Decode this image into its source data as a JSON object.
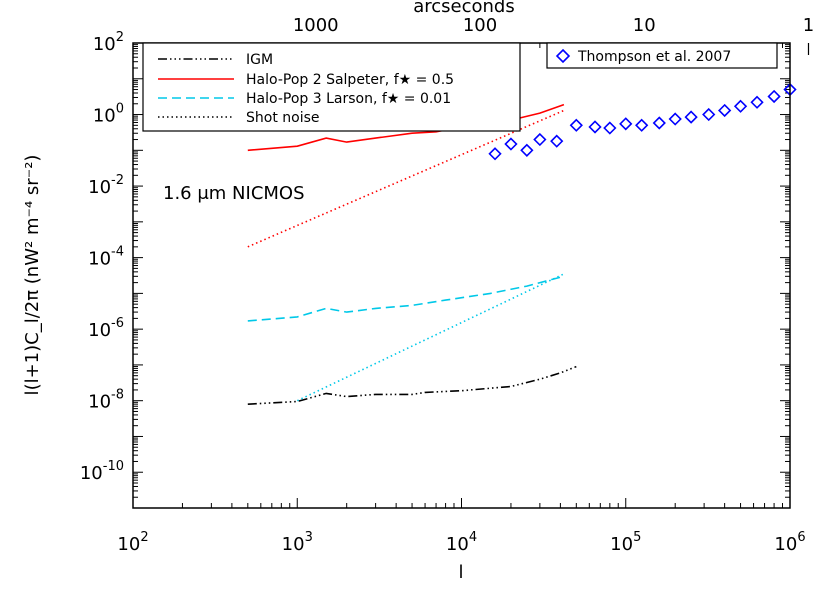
{
  "chart_data": {
    "type": "line",
    "x_scale": "log",
    "y_scale": "log",
    "xlim": [
      100,
      1000000
    ],
    "ylim": [
      1e-11,
      100
    ],
    "xlabel": "l",
    "ylabel": "l(l+1)C_l/2π (nW² m⁻⁴ sr⁻²)",
    "top_axis": {
      "label": "arcseconds",
      "ticks": [
        {
          "label": "1000",
          "l": 1296
        },
        {
          "label": "100",
          "l": 12960
        },
        {
          "label": "10",
          "l": 129600
        },
        {
          "label": "1",
          "l": 1296000
        }
      ]
    },
    "x_ticks": [
      {
        "base": "10",
        "exp": "2",
        "value": 100
      },
      {
        "base": "10",
        "exp": "3",
        "value": 1000
      },
      {
        "base": "10",
        "exp": "4",
        "value": 10000
      },
      {
        "base": "10",
        "exp": "5",
        "value": 100000
      },
      {
        "base": "10",
        "exp": "6",
        "value": 1000000
      }
    ],
    "y_ticks": [
      {
        "base": "10",
        "exp": "2",
        "value": 100
      },
      {
        "base": "10",
        "exp": "0",
        "value": 1
      },
      {
        "base": "10",
        "exp": "-2",
        "value": 0.01
      },
      {
        "base": "10",
        "exp": "-4",
        "value": 0.0001
      },
      {
        "base": "10",
        "exp": "-6",
        "value": 1e-06
      },
      {
        "base": "10",
        "exp": "-8",
        "value": 1e-08
      },
      {
        "base": "10",
        "exp": "-10",
        "value": 1e-10
      }
    ],
    "annotation": "1.6 μm NICMOS",
    "legend_left": {
      "placement": "top-left",
      "entries": [
        "IGM",
        "Halo-Pop 2 Salpeter, f★ = 0.5",
        "Halo-Pop 3 Larson, f★ = 0.01",
        "Shot noise"
      ]
    },
    "legend_right": {
      "placement": "top-right",
      "entries": [
        "Thompson et al. 2007"
      ]
    },
    "series": [
      {
        "name": "IGM",
        "style": "dash-dot-dot-dot",
        "color": "#000000",
        "points": [
          [
            500,
            8e-09
          ],
          [
            1000,
            9.5e-09
          ],
          [
            1200,
            1.2e-08
          ],
          [
            1500,
            1.6e-08
          ],
          [
            2000,
            1.3e-08
          ],
          [
            3000,
            1.5e-08
          ],
          [
            5000,
            1.5e-08
          ],
          [
            6000,
            1.7e-08
          ],
          [
            10000,
            1.9e-08
          ],
          [
            20000,
            2.5e-08
          ],
          [
            30000,
            4e-08
          ],
          [
            40000,
            6e-08
          ],
          [
            50000,
            9e-08
          ]
        ]
      },
      {
        "name": "Halo-Pop 2 Salpeter, f★ = 0.5",
        "style": "solid",
        "color": "#ff0000",
        "points": [
          [
            500,
            0.1
          ],
          [
            1000,
            0.13
          ],
          [
            1500,
            0.22
          ],
          [
            2000,
            0.17
          ],
          [
            3000,
            0.22
          ],
          [
            5000,
            0.3
          ],
          [
            7000,
            0.33
          ],
          [
            10000,
            0.45
          ],
          [
            15000,
            0.55
          ],
          [
            20000,
            0.7
          ],
          [
            30000,
            1.1
          ],
          [
            42000,
            1.9
          ]
        ]
      },
      {
        "name": "Halo-Pop 2 shot noise",
        "style": "dotted",
        "color": "#ff0000",
        "points": [
          [
            500,
            0.0002
          ],
          [
            42000,
            1.3
          ]
        ]
      },
      {
        "name": "Halo-Pop 3 Larson, f★ = 0.01",
        "style": "dashed",
        "color": "#00c8e8",
        "points": [
          [
            500,
            1.7e-06
          ],
          [
            1000,
            2.2e-06
          ],
          [
            1500,
            3.8e-06
          ],
          [
            2000,
            3e-06
          ],
          [
            3000,
            3.8e-06
          ],
          [
            5000,
            4.6e-06
          ],
          [
            8000,
            6.5e-06
          ],
          [
            15000,
            1e-05
          ],
          [
            25000,
            1.6e-05
          ],
          [
            42000,
            3e-05
          ]
        ]
      },
      {
        "name": "Halo-Pop 3 shot noise",
        "style": "dotted",
        "color": "#00c8e8",
        "points": [
          [
            1000,
            1e-08
          ],
          [
            42000,
            3.5e-05
          ]
        ]
      }
    ],
    "scatter": {
      "name": "Thompson et al. 2007",
      "marker": "diamond",
      "color": "#0000ff",
      "points": [
        [
          16000,
          0.08
        ],
        [
          20000,
          0.15
        ],
        [
          25000,
          0.1
        ],
        [
          30000,
          0.2
        ],
        [
          38000,
          0.18
        ],
        [
          50000,
          0.5
        ],
        [
          65000,
          0.45
        ],
        [
          80000,
          0.42
        ],
        [
          100000,
          0.55
        ],
        [
          125000,
          0.5
        ],
        [
          160000,
          0.58
        ],
        [
          200000,
          0.75
        ],
        [
          250000,
          0.85
        ],
        [
          320000,
          1.0
        ],
        [
          400000,
          1.3
        ],
        [
          500000,
          1.7
        ],
        [
          630000,
          2.2
        ],
        [
          800000,
          3.2
        ],
        [
          1000000,
          5.0
        ]
      ]
    }
  }
}
